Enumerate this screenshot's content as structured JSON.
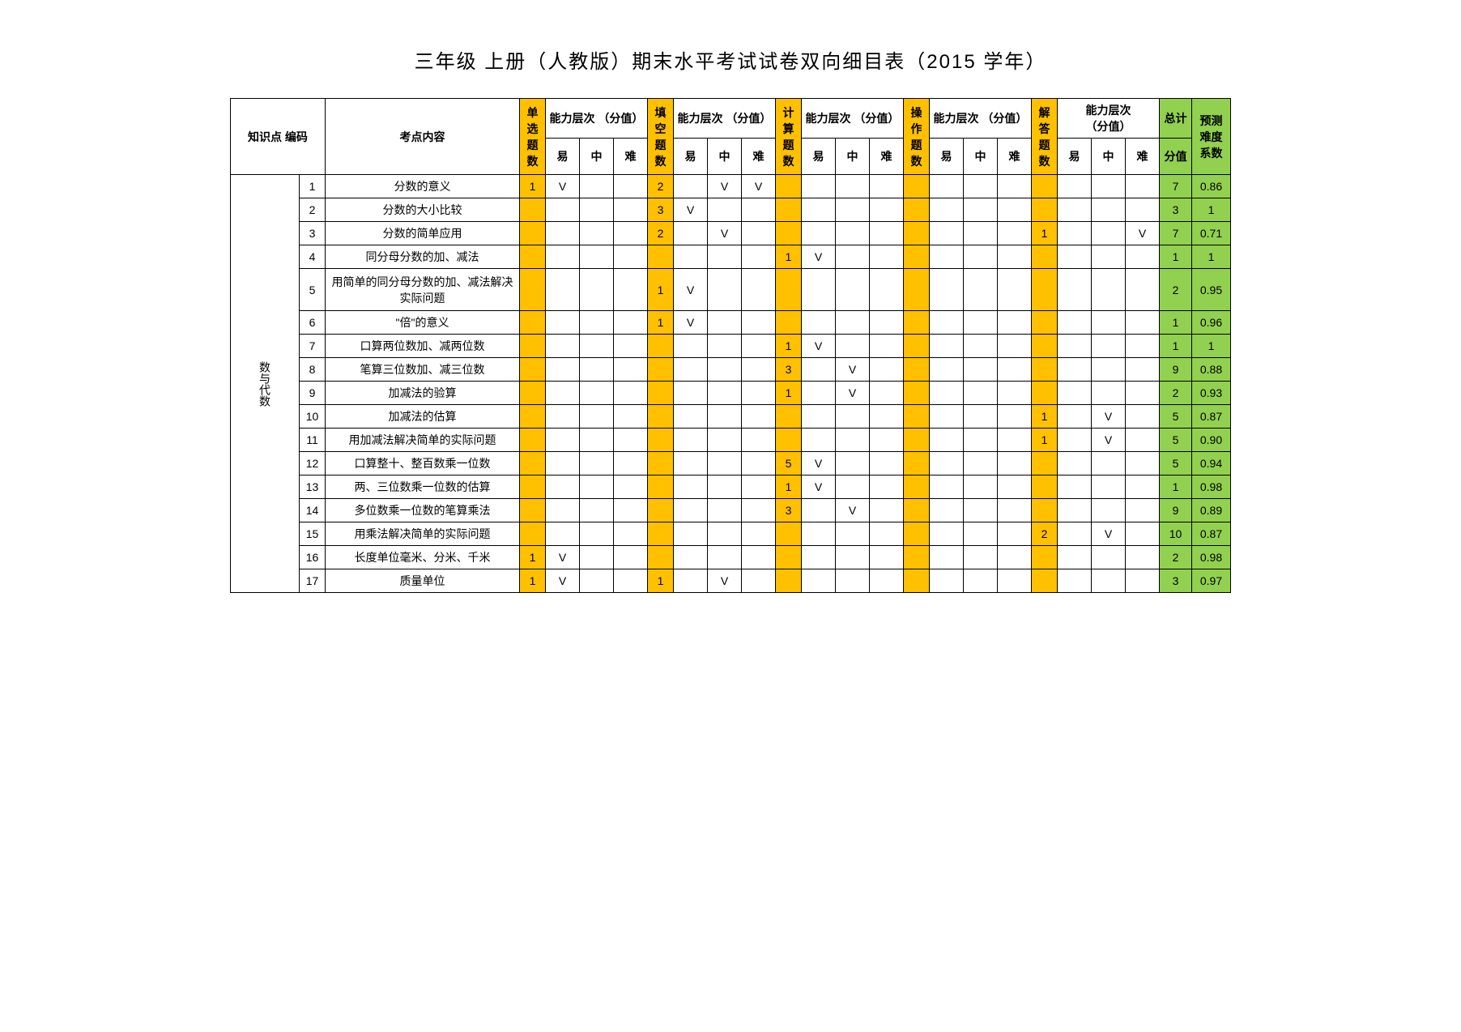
{
  "title": "三年级 上册（人教版）期末水平考试试卷双向细目表（2015 学年）",
  "colors": {
    "orange": "#ffc000",
    "green": "#92d050",
    "border": "#000000",
    "bg": "#ffffff"
  },
  "header": {
    "code": "知识点 编码",
    "topic": "考点内容",
    "groups": [
      {
        "count": "单 选 题 数",
        "level": "能力层次 （分值）"
      },
      {
        "count": "填 空 题 数",
        "level": "能力层次 （分值）"
      },
      {
        "count": "计 算 题 数",
        "level": "能力层次 （分值）"
      },
      {
        "count": "操 作 题 数",
        "level": "能力层次 （分值）"
      },
      {
        "count": "解 答 题 数",
        "level": "能力层次"
      }
    ],
    "level5_sub": "（分值）",
    "sublabels": [
      "易",
      "中",
      "难"
    ],
    "total": "总计",
    "total_sub": "分值",
    "coef": "预测 难度 系数"
  },
  "category": "数与代数",
  "rows": [
    {
      "n": "1",
      "topic": "分数的意义",
      "sc": "1",
      "sc_e": "V",
      "fc": "2",
      "fc_m": "V",
      "fc_h": "V",
      "total": "7",
      "coef": "0.86"
    },
    {
      "n": "2",
      "topic": "分数的大小比较",
      "fc": "3",
      "fc_e": "V",
      "total": "3",
      "coef": "1"
    },
    {
      "n": "3",
      "topic": "分数的简单应用",
      "fc": "2",
      "fc_m": "V",
      "ac": "1",
      "ac_h": "V",
      "total": "7",
      "coef": "0.71"
    },
    {
      "n": "4",
      "topic": "同分母分数的加、减法",
      "cc": "1",
      "cc_e": "V",
      "total": "1",
      "coef": "1"
    },
    {
      "n": "5",
      "topic": "用简单的同分母分数的加、减法解决 实际问题",
      "fc": "1",
      "fc_e": "V",
      "total": "2",
      "coef": "0.95"
    },
    {
      "n": "6",
      "topic": "\"倍\"的意义",
      "fc": "1",
      "fc_e": "V",
      "total": "1",
      "coef": "0.96"
    },
    {
      "n": "7",
      "topic": "口算两位数加、减两位数",
      "cc": "1",
      "cc_e": "V",
      "total": "1",
      "coef": "1"
    },
    {
      "n": "8",
      "topic": "笔算三位数加、减三位数",
      "cc": "3",
      "cc_m": "V",
      "total": "9",
      "coef": "0.88"
    },
    {
      "n": "9",
      "topic": "加减法的验算",
      "cc": "1",
      "cc_m": "V",
      "total": "2",
      "coef": "0.93"
    },
    {
      "n": "10",
      "topic": "加减法的估算",
      "ac": "1",
      "ac_m": "V",
      "total": "5",
      "coef": "0.87"
    },
    {
      "n": "11",
      "topic": "用加减法解决简单的实际问题",
      "ac": "1",
      "ac_m": "V",
      "total": "5",
      "coef": "0.90"
    },
    {
      "n": "12",
      "topic": "口算整十、整百数乘一位数",
      "cc": "5",
      "cc_e": "V",
      "total": "5",
      "coef": "0.94"
    },
    {
      "n": "13",
      "topic": "两、三位数乘一位数的估算",
      "cc": "1",
      "cc_e": "V",
      "total": "1",
      "coef": "0.98"
    },
    {
      "n": "14",
      "topic": "多位数乘一位数的笔算乘法",
      "cc": "3",
      "cc_m": "V",
      "total": "9",
      "coef": "0.89"
    },
    {
      "n": "15",
      "topic": "用乘法解决简单的实际问题",
      "ac": "2",
      "ac_m": "V",
      "total": "10",
      "coef": "0.87"
    },
    {
      "n": "16",
      "topic": "长度单位毫米、分米、千米",
      "sc": "1",
      "sc_e": "V",
      "total": "2",
      "coef": "0.98"
    },
    {
      "n": "17",
      "topic": "质量单位",
      "sc": "1",
      "sc_e": "V",
      "fc": "1",
      "fc_m": "V",
      "total": "3",
      "coef": "0.97"
    }
  ]
}
